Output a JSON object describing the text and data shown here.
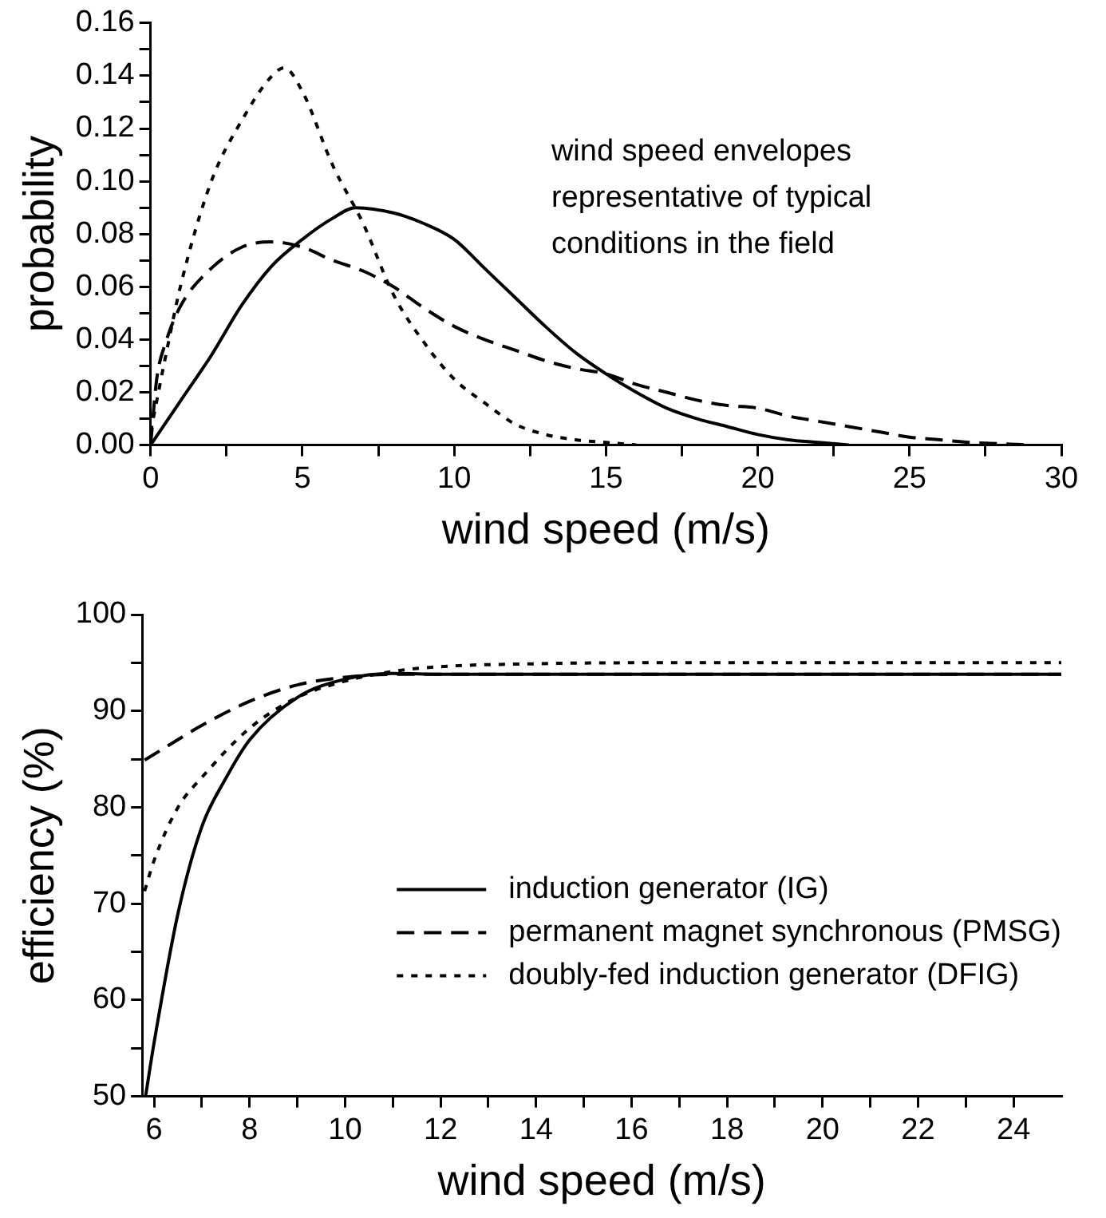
{
  "chart_data": [
    {
      "type": "line",
      "xlabel": "wind speed (m/s)",
      "ylabel": "probability",
      "annotations": [
        "wind speed envelopes representative of typical conditions in the field"
      ],
      "xlim": [
        0,
        30
      ],
      "xticks": [
        0,
        {
          "value": 2.5,
          "label": null
        },
        5,
        {
          "value": 7.5,
          "label": null
        },
        10,
        {
          "value": 12.5,
          "label": null
        },
        15,
        {
          "value": 17.5,
          "label": null
        },
        20,
        {
          "value": 22.5,
          "label": null
        },
        25,
        {
          "value": 27.5,
          "label": null
        },
        30
      ],
      "ylim": [
        0,
        0.16
      ],
      "yticks": [
        {
          "value": 0,
          "label": "0.00"
        },
        {
          "value": 0.01,
          "label": null
        },
        {
          "value": 0.02,
          "label": "0.02"
        },
        {
          "value": 0.03,
          "label": null
        },
        {
          "value": 0.04,
          "label": "0.04"
        },
        {
          "value": 0.05,
          "label": null
        },
        {
          "value": 0.06,
          "label": "0.06"
        },
        {
          "value": 0.07,
          "label": null
        },
        {
          "value": 0.08,
          "label": "0.08"
        },
        {
          "value": 0.09,
          "label": null
        },
        {
          "value": 0.1,
          "label": "0.10"
        },
        {
          "value": 0.11,
          "label": null
        },
        {
          "value": 0.12,
          "label": "0.12"
        },
        {
          "value": 0.13,
          "label": null
        },
        {
          "value": 0.14,
          "label": "0.14"
        },
        {
          "value": 0.15,
          "label": null
        },
        {
          "value": 0.16,
          "label": "0.16"
        }
      ],
      "grid": false,
      "legend": false,
      "series": [
        {
          "color": "#000000",
          "line_style": "solid",
          "x": [
            0,
            1,
            2,
            3,
            4,
            5,
            6,
            6.75,
            8,
            9,
            10,
            11,
            12,
            13,
            14,
            15,
            16,
            17,
            18,
            19,
            20,
            21,
            22,
            23
          ],
          "values": [
            0,
            0.017,
            0.034,
            0.053,
            0.068,
            0.078,
            0.086,
            0.09,
            0.088,
            0.084,
            0.078,
            0.067,
            0.056,
            0.045,
            0.035,
            0.027,
            0.02,
            0.014,
            0.01,
            0.007,
            0.004,
            0.002,
            0.001,
            0
          ]
        },
        {
          "color": "#000000",
          "line_style": "dashed",
          "x": [
            0,
            0.2,
            0.5,
            1,
            2,
            3,
            4,
            5,
            6,
            7,
            8,
            9,
            10,
            11,
            12,
            13,
            14,
            15,
            16,
            17,
            18,
            19,
            20,
            21,
            22,
            23,
            24,
            25,
            26,
            27,
            28,
            29
          ],
          "values": [
            0,
            0.025,
            0.039,
            0.053,
            0.067,
            0.075,
            0.077,
            0.075,
            0.07,
            0.066,
            0.06,
            0.052,
            0.045,
            0.04,
            0.036,
            0.032,
            0.029,
            0.027,
            0.023,
            0.02,
            0.017,
            0.015,
            0.014,
            0.011,
            0.009,
            0.007,
            0.005,
            0.003,
            0.002,
            0.001,
            0.0005,
            0
          ]
        },
        {
          "color": "#000000",
          "line_style": "dotted",
          "x": [
            0,
            0.5,
            1,
            2,
            3,
            4,
            4.4,
            5,
            6,
            7,
            8,
            9,
            10,
            11,
            12,
            13,
            14,
            15,
            16
          ],
          "values": [
            0.005,
            0.034,
            0.061,
            0.1,
            0.123,
            0.14,
            0.143,
            0.134,
            0.106,
            0.084,
            0.057,
            0.039,
            0.025,
            0.016,
            0.008,
            0.004,
            0.002,
            0.001,
            0
          ]
        }
      ]
    },
    {
      "type": "line",
      "xlabel": "wind speed (m/s)",
      "ylabel": "efficiency (%)",
      "xlim": [
        5.75,
        25
      ],
      "xticks": [
        6,
        {
          "value": 7,
          "label": null
        },
        8,
        {
          "value": 9,
          "label": null
        },
        10,
        {
          "value": 11,
          "label": null
        },
        12,
        {
          "value": 13,
          "label": null
        },
        14,
        {
          "value": 15,
          "label": null
        },
        16,
        {
          "value": 17,
          "label": null
        },
        18,
        {
          "value": 19,
          "label": null
        },
        20,
        {
          "value": 21,
          "label": null
        },
        22,
        {
          "value": 23,
          "label": null
        },
        24
      ],
      "ylim": [
        50,
        100
      ],
      "yticks": [
        50,
        {
          "value": 55,
          "label": null
        },
        60,
        {
          "value": 65,
          "label": null
        },
        70,
        {
          "value": 75,
          "label": null
        },
        80,
        {
          "value": 85,
          "label": null
        },
        90,
        {
          "value": 95,
          "label": null
        },
        100
      ],
      "grid": false,
      "legend": "right",
      "series": [
        {
          "name": "induction generator (IG)",
          "color": "#000000",
          "line_style": "solid",
          "x": [
            5.82,
            6,
            6.5,
            7,
            7.5,
            8,
            9,
            10,
            11,
            12,
            14,
            18,
            25
          ],
          "values": [
            50,
            55.6,
            69,
            78,
            83,
            87,
            91.4,
            93.3,
            93.9,
            93.8,
            93.8,
            93.8,
            93.8
          ]
        },
        {
          "name": "permanent magnet synchronous (PMSG)",
          "color": "#000000",
          "line_style": "dashed",
          "x": [
            5.8,
            6,
            7,
            8,
            9,
            10,
            11,
            12,
            14,
            18,
            25
          ],
          "values": [
            84.9,
            85.5,
            88.5,
            91,
            92.7,
            93.5,
            93.8,
            93.8,
            93.8,
            93.8,
            93.8
          ]
        },
        {
          "name": "doubly-fed induction generator (DFIG)",
          "color": "#000000",
          "line_style": "dotted",
          "x": [
            5.8,
            6,
            6.5,
            7,
            8,
            9,
            10,
            11,
            12,
            14,
            16,
            18,
            25
          ],
          "values": [
            71.3,
            74.5,
            80,
            83.1,
            88.2,
            91.4,
            93.1,
            94.1,
            94.6,
            94.9,
            95,
            95,
            95
          ]
        }
      ]
    }
  ]
}
